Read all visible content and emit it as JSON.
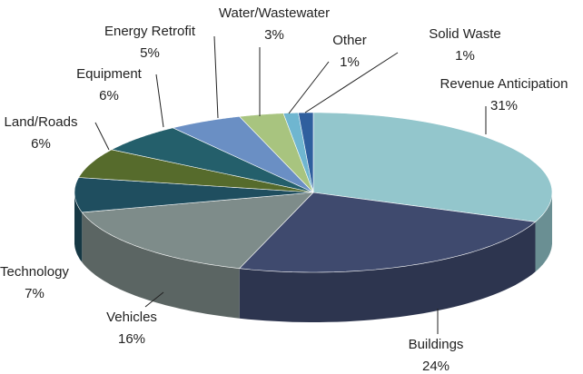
{
  "chart_data": {
    "type": "pie",
    "style": "3d",
    "categories": [
      "Revenue Anticipation",
      "Buildings",
      "Vehicles",
      "Technology",
      "Land/Roads",
      "Equipment",
      "Energy Retrofit",
      "Water/Wastewater",
      "Other",
      "Solid Waste"
    ],
    "values": [
      31,
      24,
      16,
      7,
      6,
      6,
      5,
      3,
      1,
      1
    ],
    "value_labels": [
      "31%",
      "24%",
      "16%",
      "7%",
      "6%",
      "6%",
      "5%",
      "3%",
      "1%",
      "1%"
    ],
    "colors": [
      "#93c6cc",
      "#3f4a6e",
      "#7e8c8a",
      "#1f4e5f",
      "#566b2c",
      "#245f6b",
      "#6a8fc4",
      "#a8c47f",
      "#6fb6d0",
      "#2f5f9e"
    ]
  }
}
